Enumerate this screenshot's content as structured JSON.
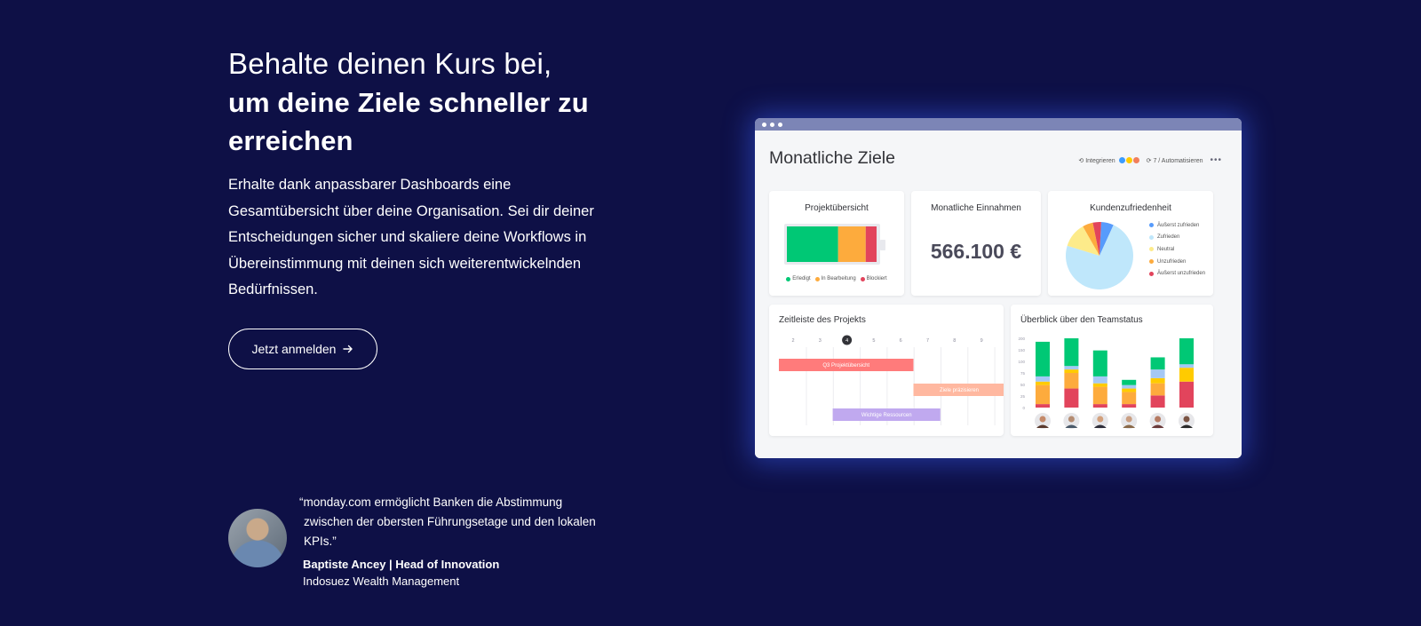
{
  "hero": {
    "headline_line1": "Behalte deinen Kurs bei,",
    "headline_bold_line1": "um deine Ziele schneller zu",
    "headline_bold_line2": "erreichen",
    "description_lines": [
      "Erhalte dank anpassbarer Dashboards eine",
      "Gesamtübersicht über deine Organisation. Sei dir deiner",
      "Entscheidungen sicher und skaliere deine Workflows in",
      "Übereinstimmung mit deinen sich weiterentwickelnden",
      "Bedürfnissen."
    ],
    "cta_label": "Jetzt anmelden",
    "cta_icon": "arrow-right-icon"
  },
  "testimonial": {
    "quote_line1": "“monday.com ermöglicht Banken die Abstimmung",
    "quote_line2": "zwischen der obersten Führungsetage und den lokalen",
    "quote_line3": "KPIs.”",
    "author": "Baptiste Ancey | Head of Innovation",
    "company": "Indosuez Wealth Management"
  },
  "dashboard": {
    "title": "Monatliche Ziele",
    "integrate_label": "Integrieren",
    "automate_label": "7 / Automatisieren",
    "project_overview": {
      "title": "Projektübersicht",
      "segments": [
        {
          "label": "Erledigt",
          "value": 0.52,
          "color": "#00c875"
        },
        {
          "label": "In Bearbeitung",
          "value": 0.28,
          "color": "#fdab3d"
        },
        {
          "label": "Blockiert",
          "value": 0.11,
          "color": "#e2445c"
        }
      ]
    },
    "revenue": {
      "title": "Monatliche Einnahmen",
      "value": "566.100 €"
    },
    "satisfaction": {
      "title": "Kundenzufriedenheit",
      "slices": [
        {
          "label": "Äußerst zufrieden",
          "value": 6,
          "color": "#579bfc"
        },
        {
          "label": "Zufrieden",
          "value": 73,
          "color": "#bfe7fb"
        },
        {
          "label": "Neutral",
          "value": 12,
          "color": "#fdeb8a"
        },
        {
          "label": "Unzufrieden",
          "value": 5,
          "color": "#fdab3d"
        },
        {
          "label": "Äußerst unzufrieden",
          "value": 4,
          "color": "#e2445c"
        }
      ]
    },
    "timeline": {
      "title": "Zeitleiste des Projekts",
      "ticks": [
        "2",
        "3",
        "4",
        "5",
        "6",
        "7",
        "8",
        "9"
      ],
      "current": "4",
      "tasks": [
        {
          "label": "Q3 Projektübersicht",
          "start": 2,
          "end": 7,
          "color": "#ff7b7b"
        },
        {
          "label": "Ziele präzisieren",
          "start": 7,
          "end": 10.4,
          "color": "#ffb8a0"
        },
        {
          "label": "Wichtige Ressourcen",
          "start": 4,
          "end": 8,
          "color": "#c0a9ef"
        }
      ]
    },
    "team_status": {
      "title": "Überblick über den Teamstatus",
      "y_ticks": [
        "200",
        "150",
        "100",
        "75",
        "50",
        "25",
        "0"
      ],
      "members": [
        "member-1",
        "member-2",
        "member-3",
        "member-4",
        "member-5",
        "member-6"
      ],
      "series": [
        {
          "name": "",
          "color": "#e2445c",
          "values": [
            10,
            55,
            10,
            10,
            35,
            75
          ]
        },
        {
          "name": "",
          "color": "#fdab3d",
          "values": [
            55,
            45,
            50,
            35,
            35,
            0
          ]
        },
        {
          "name": "",
          "color": "#ffcb00",
          "values": [
            10,
            10,
            10,
            10,
            15,
            40
          ]
        },
        {
          "name": "",
          "color": "#a5c8f5",
          "values": [
            15,
            10,
            20,
            10,
            25,
            10
          ]
        },
        {
          "name": "",
          "color": "#00c875",
          "values": [
            100,
            80,
            75,
            15,
            35,
            75
          ]
        }
      ]
    }
  }
}
